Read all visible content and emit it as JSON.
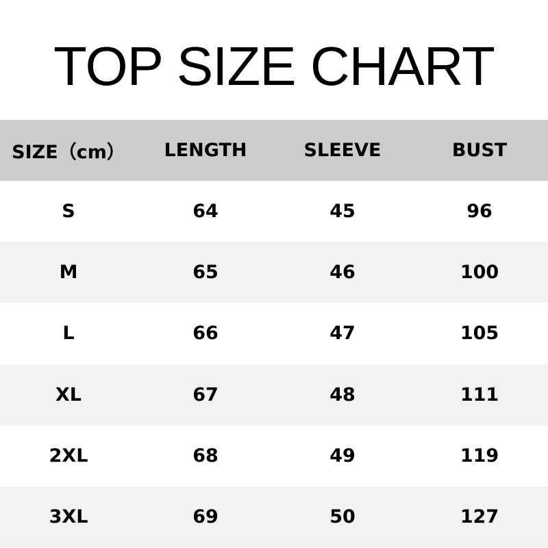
{
  "title": "TOP SIZE CHART",
  "chart_data": {
    "type": "table",
    "title": "TOP SIZE CHART",
    "columns": [
      "SIZE（cm）",
      "LENGTH",
      "SLEEVE",
      "BUST"
    ],
    "rows": [
      [
        "S",
        "64",
        "45",
        "96"
      ],
      [
        "M",
        "65",
        "46",
        "100"
      ],
      [
        "L",
        "66",
        "47",
        "105"
      ],
      [
        "XL",
        "67",
        "48",
        "111"
      ],
      [
        "2XL",
        "68",
        "49",
        "119"
      ],
      [
        "3XL",
        "69",
        "50",
        "127"
      ]
    ],
    "colors": {
      "header_bg": "#cccccc",
      "alt_row_bg": "#f2f2f2",
      "row_bg": "#ffffff"
    }
  }
}
